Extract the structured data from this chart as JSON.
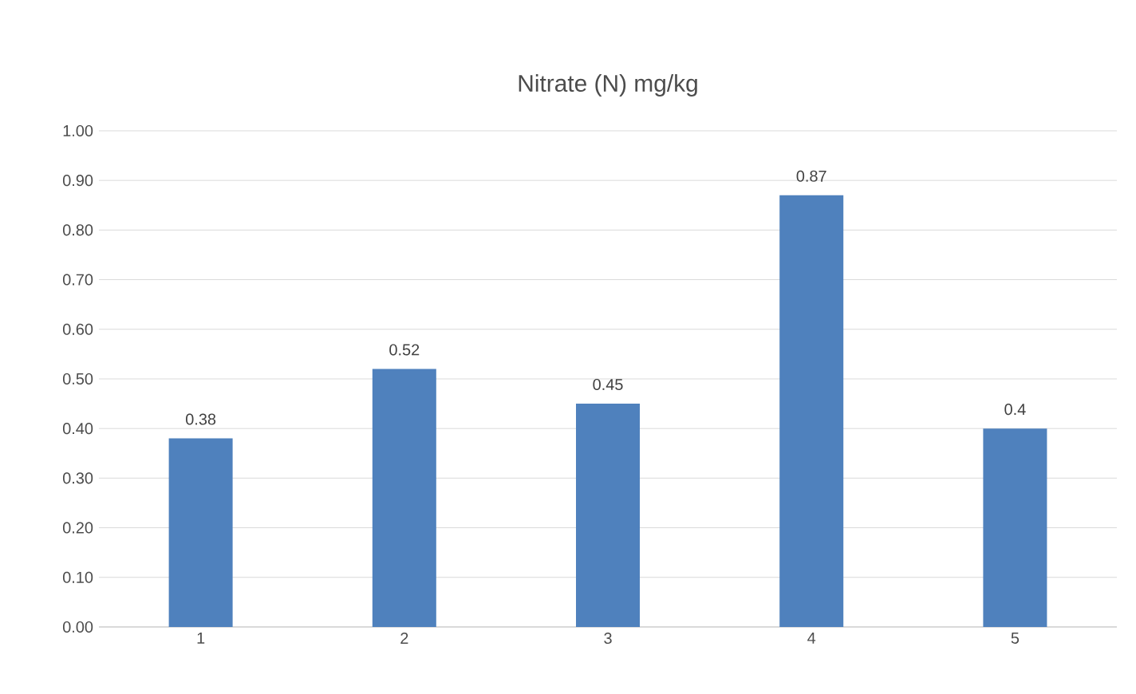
{
  "chart_data": {
    "type": "bar",
    "title": "Nitrate (N) mg/kg",
    "categories": [
      "1",
      "2",
      "3",
      "4",
      "5"
    ],
    "values": [
      0.38,
      0.52,
      0.45,
      0.87,
      0.4
    ],
    "value_labels": [
      "0.38",
      "0.52",
      "0.45",
      "0.87",
      "0.4"
    ],
    "color": "#4f81bd",
    "ylim": [
      0,
      1
    ],
    "yticks": [
      {
        "value": 0,
        "label": "0.00"
      },
      {
        "value": 0.1,
        "label": "0.10"
      },
      {
        "value": 0.2,
        "label": "0.20"
      },
      {
        "value": 0.3,
        "label": "0.30"
      },
      {
        "value": 0.4,
        "label": "0.40"
      },
      {
        "value": 0.5,
        "label": "0.50"
      },
      {
        "value": 0.6,
        "label": "0.60"
      },
      {
        "value": 0.7,
        "label": "0.70"
      },
      {
        "value": 0.8,
        "label": "0.80"
      },
      {
        "value": 0.9,
        "label": "0.90"
      },
      {
        "value": 1,
        "label": "1.00"
      }
    ],
    "grid": "y"
  }
}
